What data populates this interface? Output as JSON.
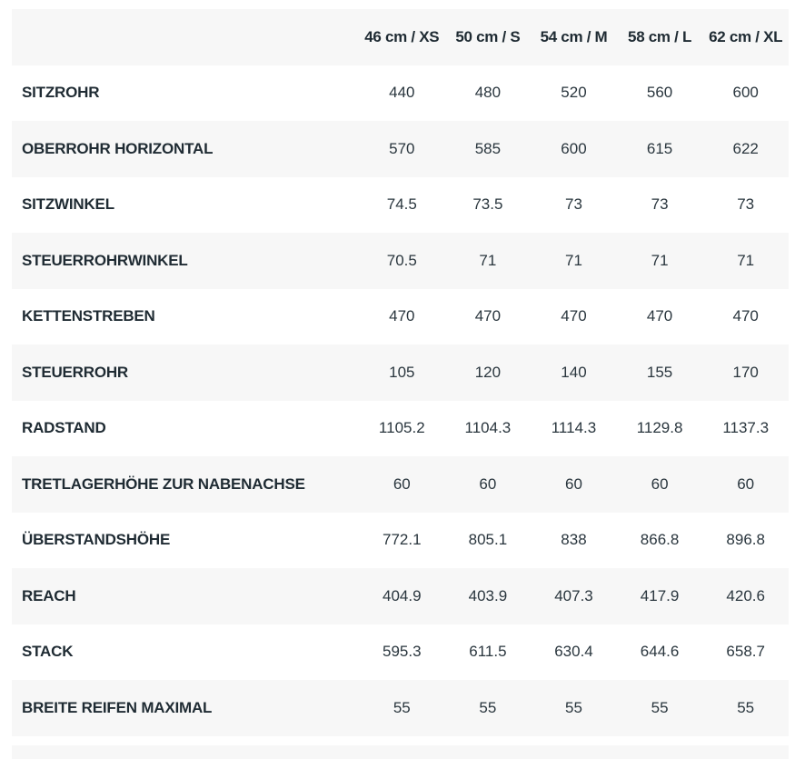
{
  "table": {
    "headers": [
      "",
      "46 cm / XS",
      "50 cm / S",
      "54 cm / M",
      "58 cm / L",
      "62 cm / XL"
    ],
    "rows": [
      {
        "label": "SITZROHR",
        "values": [
          "440",
          "480",
          "520",
          "560",
          "600"
        ]
      },
      {
        "label": "OBERROHR HORIZONTAL",
        "values": [
          "570",
          "585",
          "600",
          "615",
          "622"
        ]
      },
      {
        "label": "SITZWINKEL",
        "values": [
          "74.5",
          "73.5",
          "73",
          "73",
          "73"
        ]
      },
      {
        "label": "STEUERROHRWINKEL",
        "values": [
          "70.5",
          "71",
          "71",
          "71",
          "71"
        ]
      },
      {
        "label": "KETTENSTREBEN",
        "values": [
          "470",
          "470",
          "470",
          "470",
          "470"
        ]
      },
      {
        "label": "STEUERROHR",
        "values": [
          "105",
          "120",
          "140",
          "155",
          "170"
        ]
      },
      {
        "label": "RADSTAND",
        "values": [
          "1105.2",
          "1104.3",
          "1114.3",
          "1129.8",
          "1137.3"
        ]
      },
      {
        "label": "TRETLAGERHÖHE ZUR NABENACHSE",
        "values": [
          "60",
          "60",
          "60",
          "60",
          "60"
        ]
      },
      {
        "label": "ÜBERSTANDSHÖHE",
        "values": [
          "772.1",
          "805.1",
          "838",
          "866.8",
          "896.8"
        ]
      },
      {
        "label": "REACH",
        "values": [
          "404.9",
          "403.9",
          "407.3",
          "417.9",
          "420.6"
        ]
      },
      {
        "label": "STACK",
        "values": [
          "595.3",
          "611.5",
          "630.4",
          "644.6",
          "658.7"
        ]
      },
      {
        "label": "BREITE REIFEN MAXIMAL",
        "values": [
          "55",
          "55",
          "55",
          "55",
          "55"
        ]
      }
    ]
  }
}
